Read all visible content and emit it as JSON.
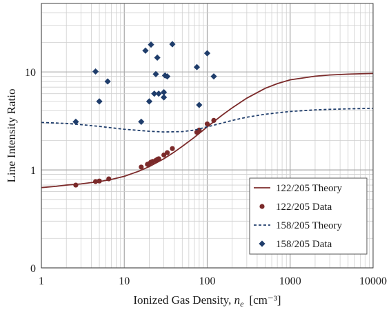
{
  "chart_data": {
    "type": "scatter",
    "xlabel_prefix": "Ionized Gas Density, ",
    "xlabel_var": "n",
    "xlabel_sub": "e",
    "xlabel_unit": "[cm⁻³]",
    "ylabel": "Line Intensity Ratio",
    "xscale": "log",
    "yscale": "log",
    "xlim": [
      1,
      10000
    ],
    "ylim": [
      0.1,
      50
    ],
    "grid": true,
    "legend_position": "bottom-right",
    "x_ticks": [
      {
        "value": 1,
        "label": "1"
      },
      {
        "value": 10,
        "label": "10"
      },
      {
        "value": 100,
        "label": "100"
      },
      {
        "value": 1000,
        "label": "1000"
      },
      {
        "value": 10000,
        "label": "10000"
      }
    ],
    "y_ticks": [
      {
        "value": 0.1,
        "label": "0"
      },
      {
        "value": 1,
        "label": "1"
      },
      {
        "value": 10,
        "label": "10"
      }
    ],
    "colors": {
      "red": "#7b2a2a",
      "blue": "#1f3d6b",
      "grid": "#cfcfcf",
      "axis": "#404040"
    },
    "series": [
      {
        "name": "122/205 Theory",
        "kind": "line",
        "style": "solid",
        "color": "#7b2a2a",
        "x": [
          1,
          1.5,
          2,
          3,
          5,
          7,
          10,
          15,
          20,
          30,
          40,
          50,
          70,
          100,
          150,
          200,
          300,
          500,
          700,
          1000,
          2000,
          3000,
          5000,
          10000
        ],
        "y": [
          0.66,
          0.68,
          0.7,
          0.72,
          0.76,
          0.8,
          0.86,
          0.97,
          1.08,
          1.3,
          1.52,
          1.74,
          2.15,
          2.75,
          3.6,
          4.3,
          5.4,
          6.8,
          7.6,
          8.3,
          9.05,
          9.3,
          9.5,
          9.65
        ]
      },
      {
        "name": "122/205 Data",
        "kind": "scatter",
        "marker": "circle",
        "color": "#7b2a2a",
        "x": [
          2.6,
          4.5,
          5.0,
          6.5,
          16,
          19,
          20,
          21,
          22,
          24,
          25,
          26,
          30,
          33,
          38,
          75,
          80,
          100,
          120
        ],
        "y": [
          0.7,
          0.76,
          0.77,
          0.81,
          1.07,
          1.14,
          1.16,
          1.2,
          1.22,
          1.25,
          1.28,
          1.3,
          1.42,
          1.5,
          1.65,
          2.42,
          2.55,
          2.95,
          3.2
        ]
      },
      {
        "name": "158/205 Theory",
        "kind": "line",
        "style": "dashed",
        "color": "#1f3d6b",
        "x": [
          1,
          2,
          3,
          5,
          10,
          20,
          30,
          50,
          70,
          100,
          200,
          300,
          500,
          1000,
          2000,
          3000,
          5000,
          10000
        ],
        "y": [
          3.05,
          2.98,
          2.9,
          2.78,
          2.6,
          2.48,
          2.44,
          2.46,
          2.55,
          2.75,
          3.2,
          3.45,
          3.7,
          3.95,
          4.1,
          4.15,
          4.2,
          4.25
        ]
      },
      {
        "name": "158/205 Data",
        "kind": "scatter",
        "marker": "diamond",
        "color": "#1f3d6b",
        "x": [
          2.6,
          4.5,
          5.0,
          6.3,
          16,
          18,
          20,
          21,
          23,
          24,
          25,
          26,
          30,
          30,
          31,
          33,
          38,
          75,
          80,
          100,
          120
        ],
        "y": [
          3.1,
          10.1,
          5.0,
          8.0,
          3.1,
          16.5,
          5.0,
          19.0,
          6.0,
          9.5,
          14.0,
          6.0,
          5.5,
          6.2,
          9.2,
          9.0,
          19.2,
          11.2,
          4.6,
          15.5,
          9.0
        ]
      }
    ]
  }
}
